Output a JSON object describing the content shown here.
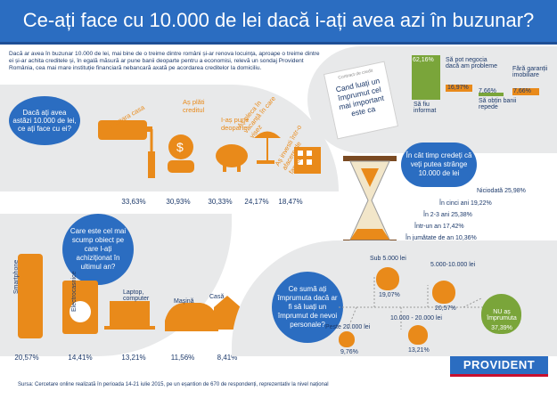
{
  "header": {
    "title": "Ce-ați face cu 10.000 de lei dacă i-ați avea azi în buzunar?"
  },
  "intro": "Dacă ar avea în buzunar 10.000 de lei, mai bine de o treime dintre români și-ar renova locuința, aproape o treime dintre ei și-ar achita creditele și, în egală măsură ar pune banii deoparte pentru a economisi, relevă un sondaj Provident România, cea mai mare instituție financiară nebancară axată pe acordarea creditelor la domiciliu.",
  "q1": {
    "question": "Dacă ați avea astăzi 10.000 de lei, ce ați face cu ei?",
    "items": [
      {
        "label": "Aș repara casa",
        "value": "33,63%"
      },
      {
        "label": "Aș plăti creditul",
        "value": "30,93%"
      },
      {
        "label": "I-aș pune deoparte",
        "value": "30,33%"
      },
      {
        "label": "Aș pleca în vacanță în care visez",
        "value": "24,17%"
      },
      {
        "label": "Aș investi într-o afacere de familie",
        "value": "18,47%"
      }
    ]
  },
  "q2": {
    "note_header": "Contract de credit",
    "question": "Cand luați un împrumut cel mai important este ca",
    "items": [
      {
        "label": "Să fiu informat",
        "value": "62,16%"
      },
      {
        "label": "Să pot negocia dacă am probleme",
        "value": "16,97%"
      },
      {
        "label": "Să obțin banii repede",
        "value": "7,66%"
      },
      {
        "label": "Fără garanții imobiliare",
        "value": "7,66%"
      }
    ]
  },
  "q3": {
    "question": "În cât timp credeți că veți putea strânge 10.000 de lei",
    "items": [
      {
        "label": "Niciodată 25,98%"
      },
      {
        "label": "În cinci ani 19,22%"
      },
      {
        "label": "În 2-3 ani 25,38%"
      },
      {
        "label": "Într-un an 17,42%"
      },
      {
        "label": "În jumătate de an 10,36%"
      }
    ]
  },
  "q4": {
    "question": "Care este cel mai scump obiect pe care l-ați achiziționat în ultimul an?",
    "items": [
      {
        "label": "Smartphone",
        "value": "20,57%"
      },
      {
        "label": "Electrocasnice",
        "value": "14,41%"
      },
      {
        "label": "Laptop, computer",
        "value": "13,21%"
      },
      {
        "label": "Mașină",
        "value": "11,56%"
      },
      {
        "label": "Casă",
        "value": "8,41%"
      }
    ]
  },
  "q5": {
    "question": "Ce sumă ați împrumuta dacă ar fi să luați un împrumut de nevoi personale?",
    "items": [
      {
        "label": "Sub 5.000 lei",
        "value": "19,07%"
      },
      {
        "label": "5.000-10.000 lei",
        "value": "20,57%"
      },
      {
        "label": "10.000 - 20.000 lei",
        "value": "13,21%"
      },
      {
        "label": "Peste 20.000 lei",
        "value": "9,76%"
      },
      {
        "label": "NU aș împrumuta",
        "value": "37,39%"
      }
    ]
  },
  "footer": "Sursa: Cercetare online realizată în perioada 14-21 iulie 2015, pe un eșantion de 670 de respondenți, reprezentativ la nivel național",
  "logo": "PROVIDENT",
  "colors": {
    "blue": "#2b6dc1",
    "orange": "#e98a1a",
    "green": "#7aa53a",
    "red": "#c8102e"
  }
}
